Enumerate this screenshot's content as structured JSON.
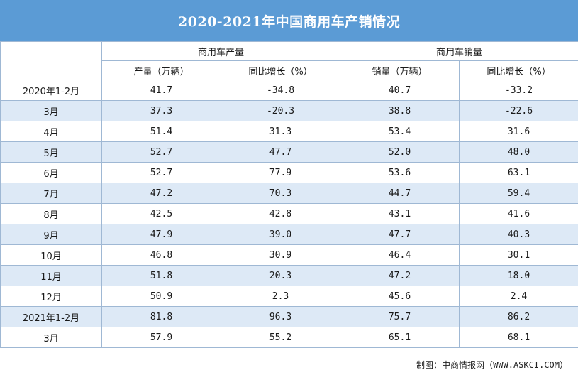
{
  "title": "2020-2021年中国商用车产销情况",
  "chart_data": {
    "type": "table",
    "groups": [
      {
        "name": "商用车产量",
        "columns": [
          "产量（万辆）",
          "同比增长（%）"
        ]
      },
      {
        "name": "商用车销量",
        "columns": [
          "销量（万辆）",
          "同比增长（%）"
        ]
      }
    ],
    "rows": [
      {
        "period": "2020年1-2月",
        "values": [
          "41.7",
          "-34.8",
          "40.7",
          "-33.2"
        ]
      },
      {
        "period": "3月",
        "values": [
          "37.3",
          "-20.3",
          "38.8",
          "-22.6"
        ]
      },
      {
        "period": "4月",
        "values": [
          "51.4",
          "31.3",
          "53.4",
          "31.6"
        ]
      },
      {
        "period": "5月",
        "values": [
          "52.7",
          "47.7",
          "52.0",
          "48.0"
        ]
      },
      {
        "period": "6月",
        "values": [
          "52.7",
          "77.9",
          "53.6",
          "63.1"
        ]
      },
      {
        "period": "7月",
        "values": [
          "47.2",
          "70.3",
          "44.7",
          "59.4"
        ]
      },
      {
        "period": "8月",
        "values": [
          "42.5",
          "42.8",
          "43.1",
          "41.6"
        ]
      },
      {
        "period": "9月",
        "values": [
          "47.9",
          "39.0",
          "47.7",
          "40.3"
        ]
      },
      {
        "period": "10月",
        "values": [
          "46.8",
          "30.9",
          "46.4",
          "30.1"
        ]
      },
      {
        "period": "11月",
        "values": [
          "51.8",
          "20.3",
          "47.2",
          "18.0"
        ]
      },
      {
        "period": "12月",
        "values": [
          "50.9",
          "2.3",
          "45.6",
          "2.4"
        ]
      },
      {
        "period": "2021年1-2月",
        "values": [
          "81.8",
          "96.3",
          "75.7",
          "86.2"
        ]
      },
      {
        "period": "3月",
        "values": [
          "57.9",
          "55.2",
          "65.1",
          "68.1"
        ]
      }
    ]
  },
  "footer": {
    "label": "制图：中商情报网（",
    "url": "WWW.ASKCI.COM",
    "close": "）"
  },
  "colors": {
    "title_bg": "#5b9bd5",
    "alt_row": "#dde9f6",
    "border": "#9fb8d4"
  }
}
